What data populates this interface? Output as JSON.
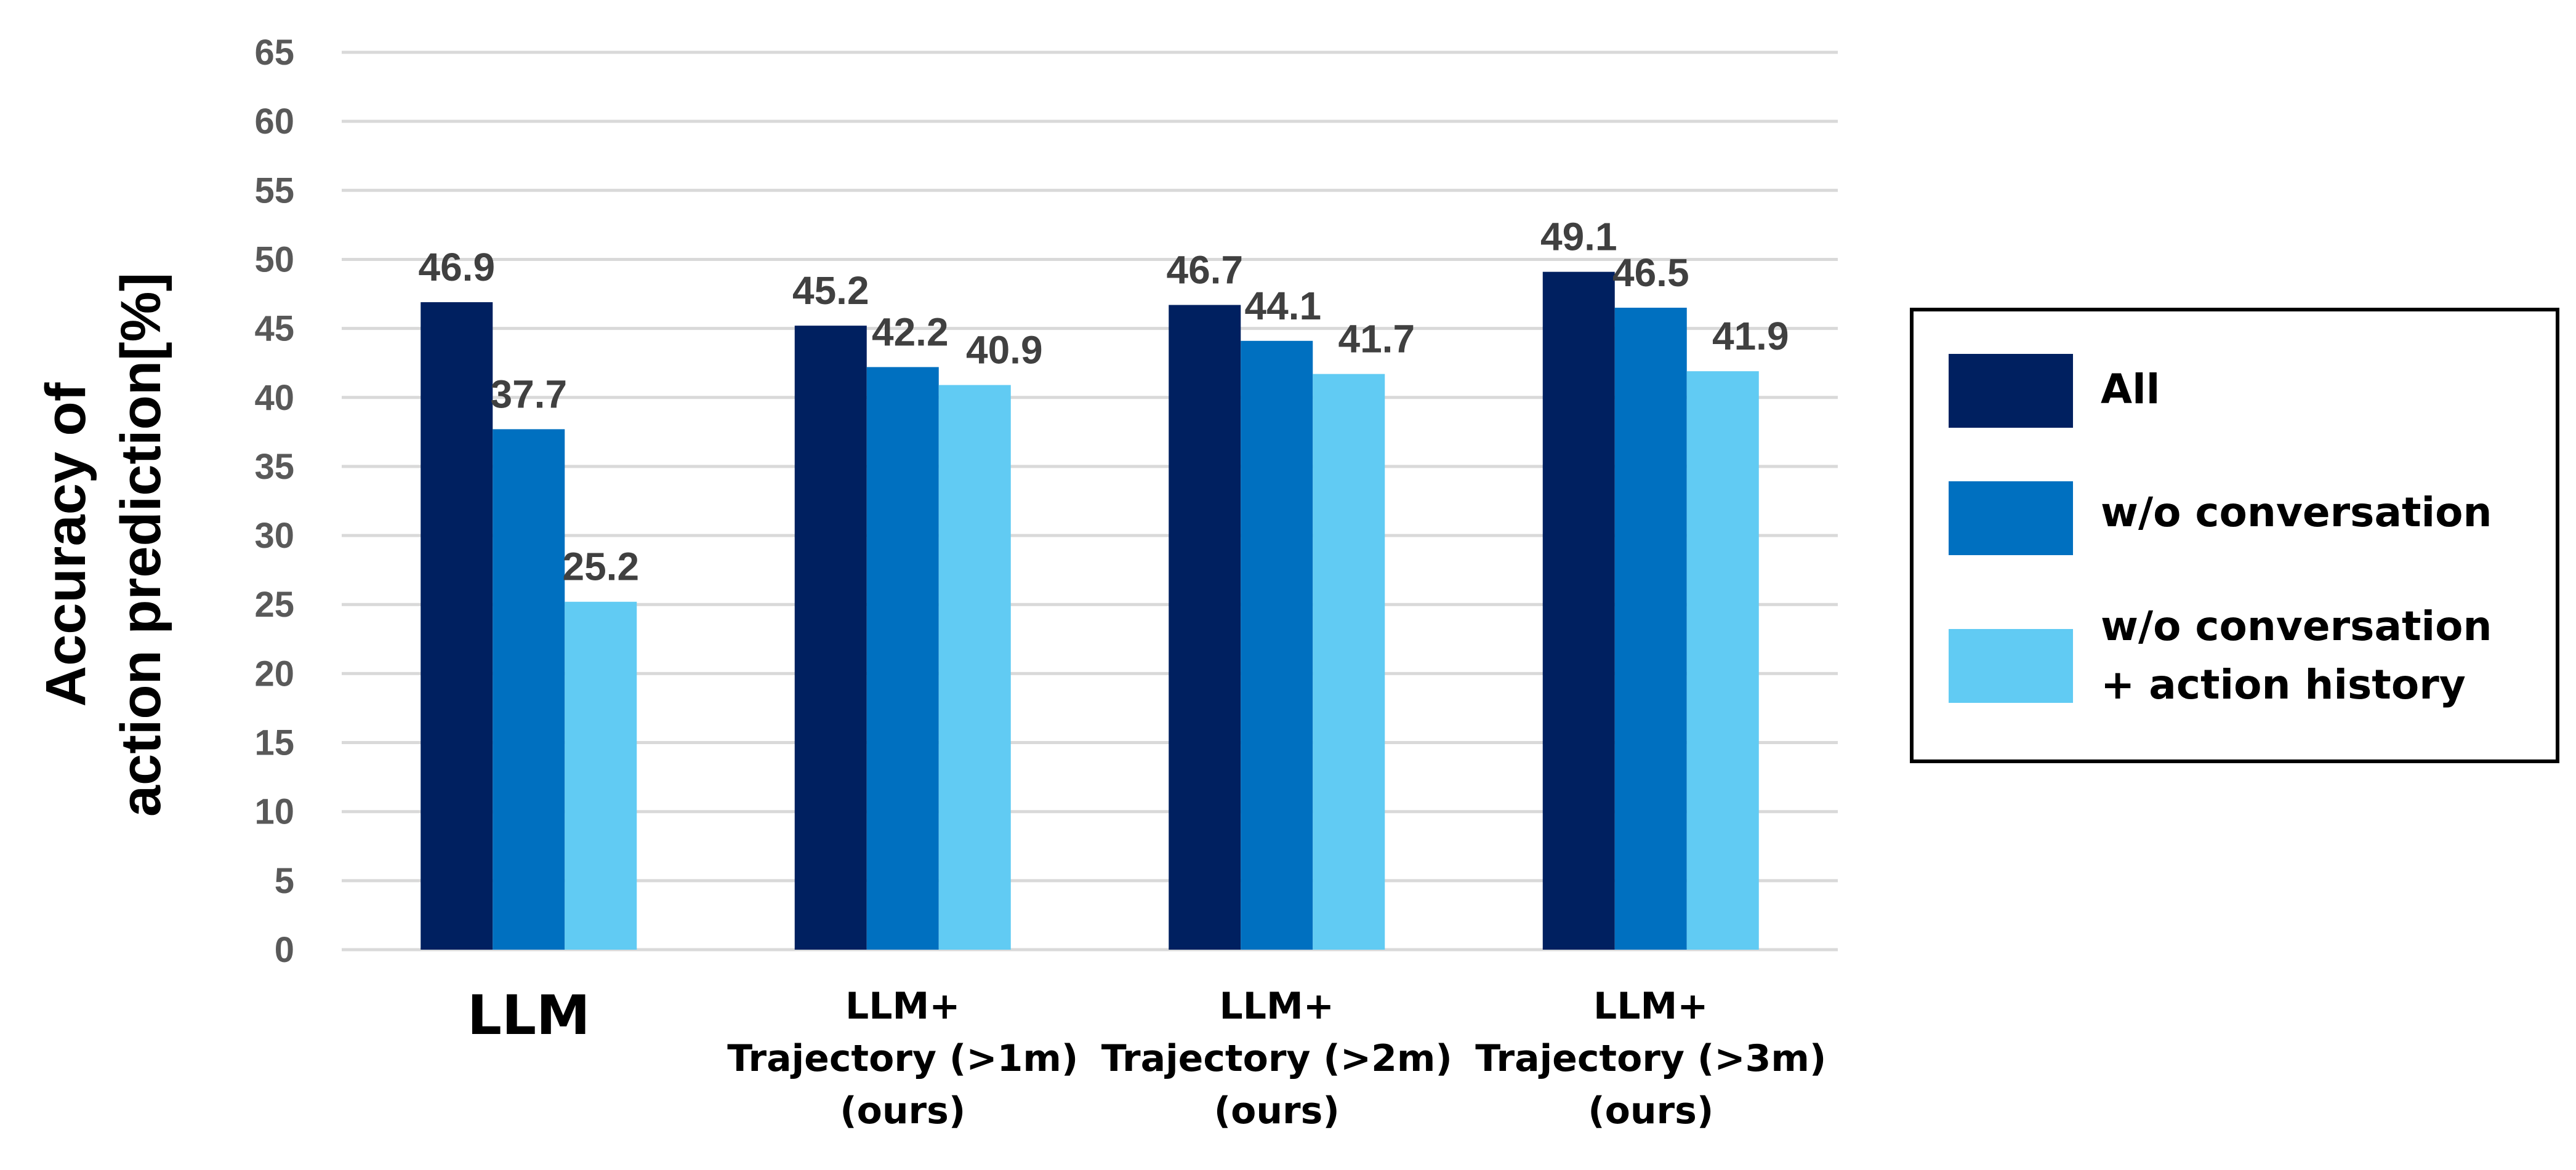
{
  "chart_data": {
    "type": "bar",
    "title": "",
    "xlabel": "",
    "ylabel": [
      "Accuracy of",
      "action prediction[%]"
    ],
    "ylim": [
      0,
      65
    ],
    "ytick_step": 5,
    "grid": true,
    "legend_position": "right",
    "categories": [
      [
        "LLM"
      ],
      [
        "LLM+",
        "Trajectory (>1m)",
        "(ours)"
      ],
      [
        "LLM+",
        "Trajectory (>2m)",
        "(ours)"
      ],
      [
        "LLM+",
        "Trajectory (>3m)",
        "(ours)"
      ]
    ],
    "series": [
      {
        "name": [
          "All"
        ],
        "color": "#002060",
        "values": [
          46.9,
          45.2,
          46.7,
          49.1
        ]
      },
      {
        "name": [
          "w/o conversation"
        ],
        "color": "#0070C0",
        "values": [
          37.7,
          42.2,
          44.1,
          46.5
        ]
      },
      {
        "name": [
          "w/o conversation",
          "+ action history"
        ],
        "color": "#61CBF3",
        "values": [
          25.2,
          40.9,
          41.7,
          41.9
        ]
      }
    ]
  }
}
